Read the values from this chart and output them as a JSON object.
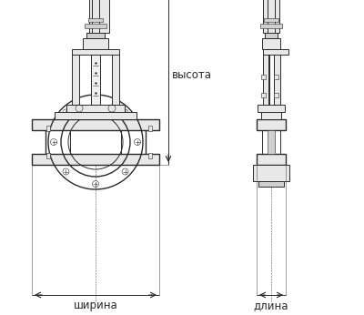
{
  "bg_color": "#ffffff",
  "line_color": "#2a2a2a",
  "dim_color": "#555555",
  "fill_light": "#e8e8e8",
  "fill_med": "#d0d0d0",
  "label_vysota": "высота",
  "label_shirina": "ширина",
  "label_dlina": "длина",
  "label_fontsize": 8.5,
  "fig_width": 4.0,
  "fig_height": 3.46,
  "dpi": 100
}
